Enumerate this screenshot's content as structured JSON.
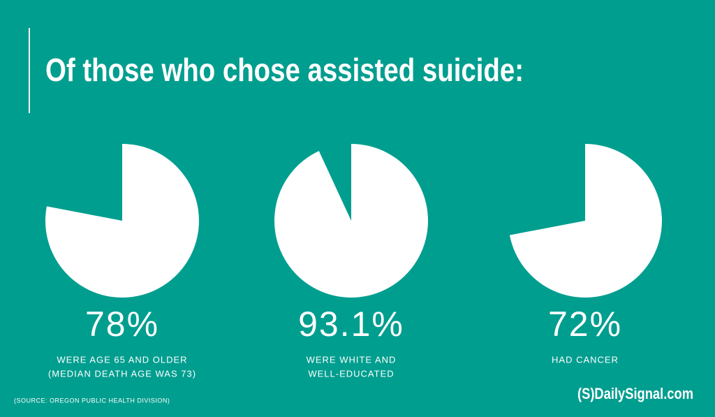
{
  "header": {
    "title": "Of those who chose assisted suicide:"
  },
  "chart_data": [
    {
      "type": "pie",
      "values": [
        78
      ],
      "value_labels": [
        "78%"
      ],
      "color": "#ffffff",
      "caption": [
        "WERE AGE 65 AND OLDER",
        "(MEDIAN DEATH AGE WAS 73)"
      ]
    },
    {
      "type": "pie",
      "values": [
        93.1
      ],
      "value_labels": [
        "93.1%"
      ],
      "color": "#ffffff",
      "caption": [
        "WERE WHITE AND",
        "WELL-EDUCATED"
      ]
    },
    {
      "type": "pie",
      "values": [
        72
      ],
      "value_labels": [
        "72%"
      ],
      "color": "#ffffff",
      "caption": [
        "HAD CANCER"
      ]
    }
  ],
  "footer": {
    "source": "(SOURCE: OREGON PUBLIC HEALTH DIVISION)",
    "logo": "(S)DailySignal.com"
  }
}
